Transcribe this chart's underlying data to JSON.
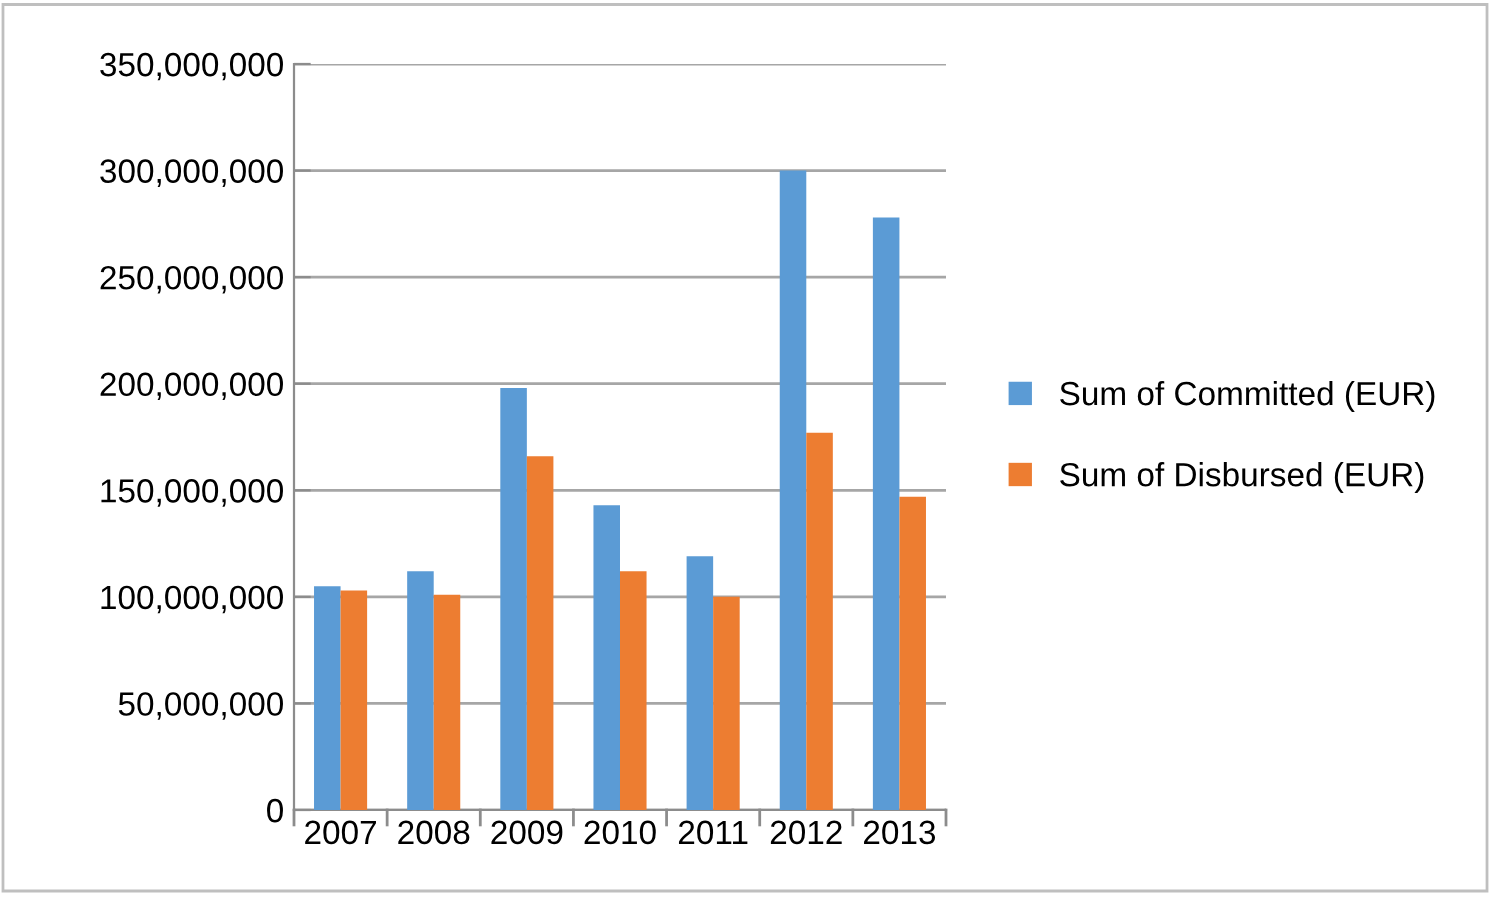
{
  "chart_data": {
    "type": "bar",
    "categories": [
      "2007",
      "2008",
      "2009",
      "2010",
      "2011",
      "2012",
      "2013"
    ],
    "series": [
      {
        "name": "Sum of Committed (EUR)",
        "color": "#5b9bd5",
        "values": [
          105000000,
          112000000,
          198000000,
          143000000,
          119000000,
          300000000,
          278000000
        ]
      },
      {
        "name": "Sum of Disbursed (EUR)",
        "color": "#ed7d31",
        "values": [
          103000000,
          101000000,
          166000000,
          112000000,
          100000000,
          177000000,
          147000000
        ]
      }
    ],
    "ylim": [
      0,
      350000000
    ],
    "yticks": [
      {
        "value": 0,
        "label": "0"
      },
      {
        "value": 50000000,
        "label": "50,000,000"
      },
      {
        "value": 100000000,
        "label": "100,000,000"
      },
      {
        "value": 150000000,
        "label": "150,000,000"
      },
      {
        "value": 200000000,
        "label": "200,000,000"
      },
      {
        "value": 250000000,
        "label": "250,000,000"
      },
      {
        "value": 300000000,
        "label": "300,000,000"
      },
      {
        "value": 350000000,
        "label": "350,000,000"
      }
    ],
    "grid": "y",
    "legend": "right"
  }
}
